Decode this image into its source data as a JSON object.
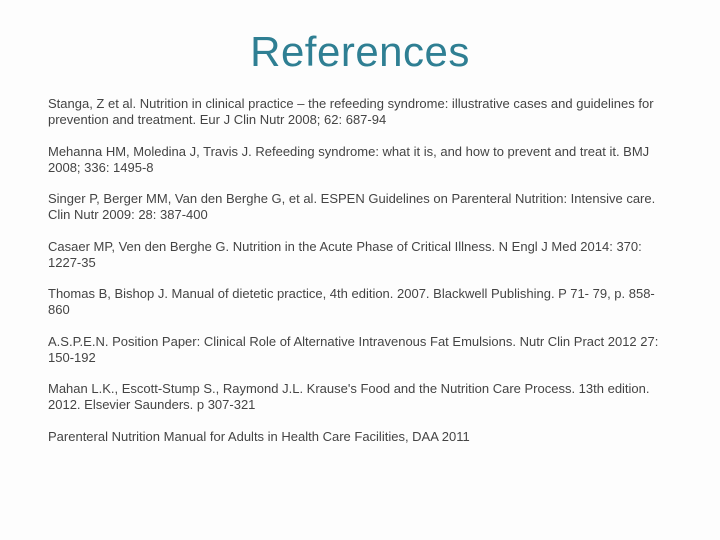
{
  "title": {
    "text": "References",
    "color": "#2f7f93",
    "fontsize": 42
  },
  "body": {
    "color": "#444444",
    "fontsize": 13,
    "background": "#fdfdfd"
  },
  "references": [
    "Stanga, Z et al. Nutrition in clinical practice – the refeeding syndrome: illustrative cases and guidelines for prevention and treatment.  Eur J Clin Nutr 2008; 62: 687-94",
    "Mehanna HM, Moledina J, Travis J.  Refeeding syndrome: what it is, and how to prevent and treat it. BMJ 2008; 336: 1495-8",
    "Singer P, Berger MM, Van den Berghe G, et al.  ESPEN Guidelines on Parenteral Nutrition: Intensive care. Clin Nutr 2009: 28: 387-400",
    "Casaer MP, Ven den Berghe G.  Nutrition in the Acute Phase of Critical Illness. N Engl J Med 2014: 370: 1227-35",
    "Thomas B, Bishop J.  Manual of dietetic practice, 4th edition. 2007. Blackwell Publishing. P 71- 79, p. 858-860",
    "A.S.P.E.N. Position Paper: Clinical Role of Alternative Intravenous Fat Emulsions.  Nutr Clin Pract 2012 27: 150-192",
    "Mahan L.K., Escott-Stump S., Raymond J.L. Krause's Food and the Nutrition Care Process.  13th edition. 2012. Elsevier Saunders. p 307-321",
    "Parenteral Nutrition Manual for Adults in Health Care Facilities, DAA 2011"
  ]
}
